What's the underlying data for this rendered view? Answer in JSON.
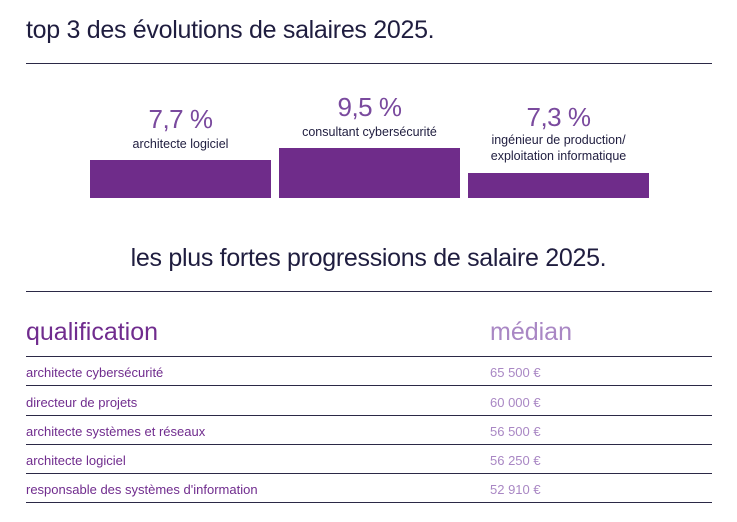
{
  "section1": {
    "title": "top 3 des évolutions de salaires 2025.",
    "podium": [
      {
        "value": "7,7 %",
        "label_lines": [
          "architecte logiciel"
        ]
      },
      {
        "value": "9,5 %",
        "label_lines": [
          "consultant cybersécurité"
        ]
      },
      {
        "value": "7,3 %",
        "label_lines": [
          "ingénieur de production/",
          "exploitation informatique"
        ]
      }
    ]
  },
  "section2": {
    "title": "les plus fortes progressions de salaire 2025.",
    "headers": {
      "qualification": "qualification",
      "median": "médian"
    },
    "rows": [
      {
        "qualification": "architecte cybersécurité",
        "median": "65 500 €"
      },
      {
        "qualification": "directeur de projets",
        "median": "60 000 €"
      },
      {
        "qualification": "architecte systèmes et réseaux",
        "median": "56 500 €"
      },
      {
        "qualification": "architecte logiciel",
        "median": "56 250 €"
      },
      {
        "qualification": "responsable des systèmes d'information",
        "median": "52 910 €"
      }
    ]
  },
  "colors": {
    "accent": "#6f2c8a",
    "accent_light": "#a987c4",
    "text": "#1f1d3f"
  }
}
